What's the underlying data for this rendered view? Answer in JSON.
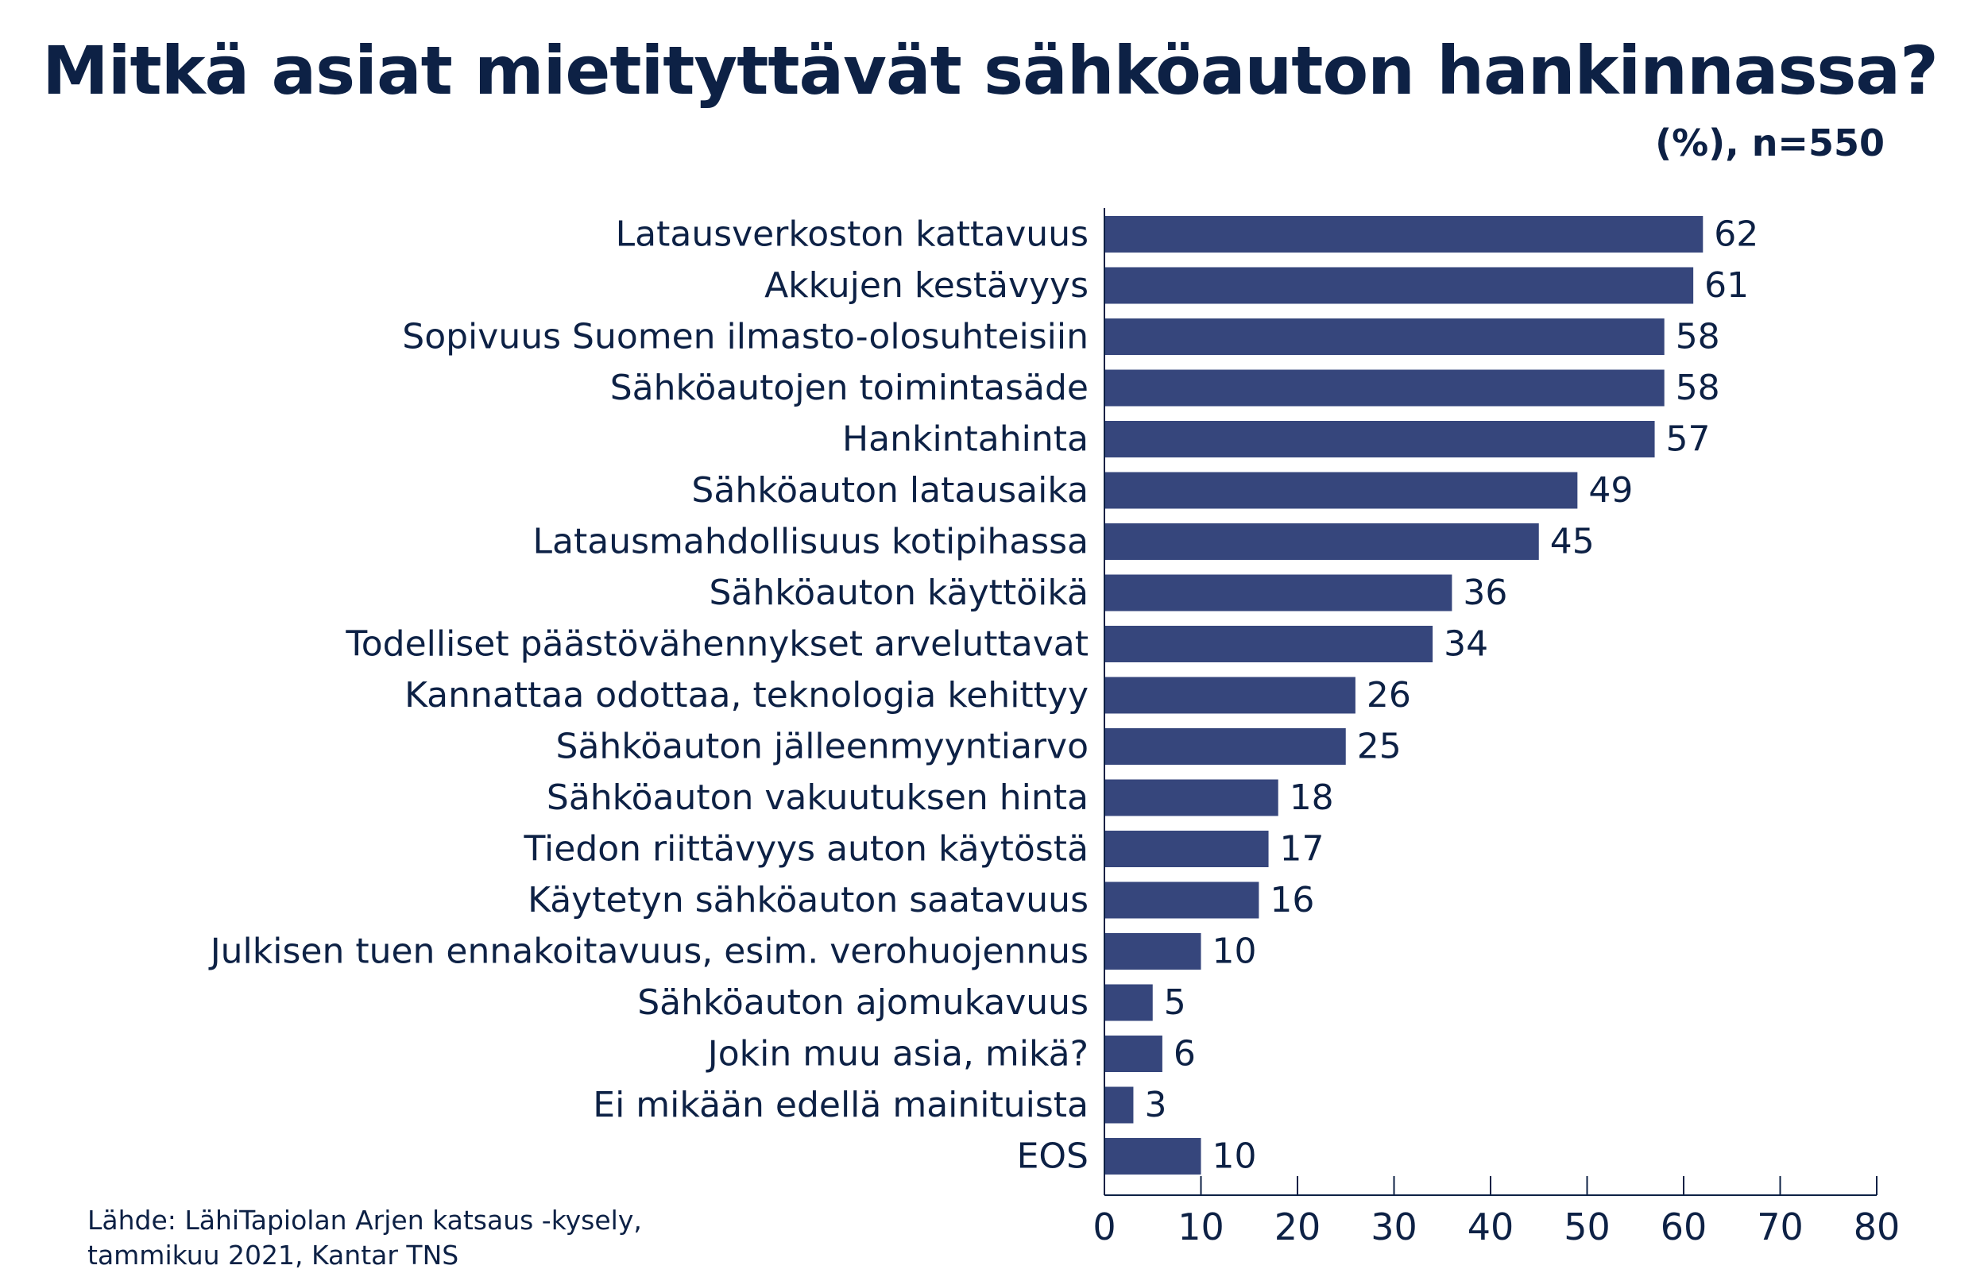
{
  "chart_data": {
    "type": "bar",
    "orientation": "horizontal",
    "title": "Mitkä asiat mietityttävät sähköauton hankinnassa?",
    "subtitle": "(%), n=550",
    "categories": [
      "Latausverkoston kattavuus",
      "Akkujen kestävyys",
      "Sopivuus Suomen ilmasto-olosuhteisiin",
      "Sähköautojen toimintasäde",
      "Hankintahinta",
      "Sähköauton latausaika",
      "Latausmahdollisuus kotipihassa",
      "Sähköauton käyttöikä",
      "Todelliset päästövähennykset arveluttavat",
      "Kannattaa odottaa, teknologia kehittyy",
      "Sähköauton jälleenmyyntiarvo",
      "Sähköauton vakuutuksen hinta",
      "Tiedon riittävyys auton käytöstä",
      "Käytetyn sähköauton saatavuus",
      "Julkisen tuen ennakoitavuus, esim. verohuojennus",
      "Sähköauton ajomukavuus",
      "Jokin muu asia, mikä?",
      "Ei mikään edellä mainituista",
      "EOS"
    ],
    "values": [
      62,
      61,
      58,
      58,
      57,
      49,
      45,
      36,
      34,
      26,
      25,
      18,
      17,
      16,
      10,
      5,
      6,
      3,
      10
    ],
    "xlim": [
      0,
      80
    ],
    "xticks": [
      0,
      10,
      20,
      30,
      40,
      50,
      60,
      70,
      80
    ],
    "tick_labels": [
      "0",
      "10",
      "20",
      "30",
      "40",
      "50",
      "60",
      "70",
      "80"
    ],
    "grid": false,
    "bar_color": "#36467c",
    "text_color": "#0d2145"
  },
  "source": {
    "line1": "Lähde: LähiTapiolan Arjen katsaus -kysely,",
    "line2": "tammikuu 2021, Kantar TNS"
  }
}
